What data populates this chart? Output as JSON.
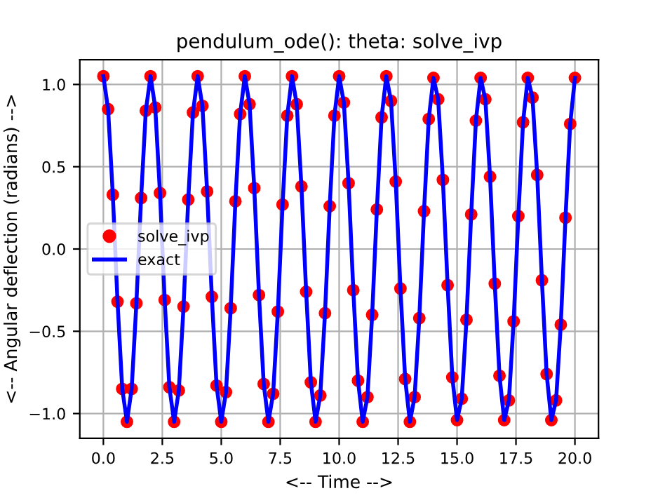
{
  "chart_data": {
    "type": "line",
    "title": "pendulum_ode(): theta: solve_ivp",
    "xlabel": "<-- Time -->",
    "ylabel": "<-- Angular deflection (radians) -->",
    "x": [
      0.0,
      0.2,
      0.4,
      0.6,
      0.8,
      1.0,
      1.2,
      1.4,
      1.6,
      1.8,
      2.0,
      2.2,
      2.4,
      2.6,
      2.8,
      3.0,
      3.2,
      3.4,
      3.6,
      3.8,
      4.0,
      4.2,
      4.4,
      4.6,
      4.8,
      5.0,
      5.2,
      5.4,
      5.6,
      5.8,
      6.0,
      6.2,
      6.4,
      6.6,
      6.8,
      7.0,
      7.2,
      7.4,
      7.6,
      7.8,
      8.0,
      8.2,
      8.4,
      8.6,
      8.8,
      9.0,
      9.2,
      9.4,
      9.6,
      9.8,
      10.0,
      10.2,
      10.4,
      10.6,
      10.8,
      11.0,
      11.2,
      11.4,
      11.6,
      11.8,
      12.0,
      12.2,
      12.4,
      12.6,
      12.8,
      13.0,
      13.2,
      13.4,
      13.6,
      13.8,
      14.0,
      14.2,
      14.4,
      14.6,
      14.8,
      15.0,
      15.2,
      15.4,
      15.6,
      15.8,
      16.0,
      16.2,
      16.4,
      16.6,
      16.8,
      17.0,
      17.2,
      17.4,
      17.6,
      17.8,
      18.0,
      18.2,
      18.4,
      18.6,
      18.8,
      19.0,
      19.2,
      19.4,
      19.6,
      19.8,
      20.0
    ],
    "series": [
      {
        "name": "solve_ivp",
        "type": "scatter",
        "color": "#ff0000",
        "marker": "circle",
        "values": [
          1.05,
          0.85,
          0.33,
          -0.32,
          -0.85,
          -1.05,
          -0.85,
          -0.33,
          0.31,
          0.84,
          1.05,
          0.86,
          0.34,
          -0.31,
          -0.84,
          -1.05,
          -0.86,
          -0.35,
          0.3,
          0.83,
          1.05,
          0.87,
          0.35,
          -0.29,
          -0.83,
          -1.05,
          -0.87,
          -0.36,
          0.29,
          0.82,
          1.05,
          0.88,
          0.37,
          -0.28,
          -0.82,
          -1.05,
          -0.88,
          -0.38,
          0.27,
          0.81,
          1.05,
          0.88,
          0.38,
          -0.26,
          -0.81,
          -1.05,
          -0.89,
          -0.39,
          0.26,
          0.81,
          1.05,
          0.89,
          0.4,
          -0.25,
          -0.8,
          -1.05,
          -0.9,
          -0.4,
          0.24,
          0.8,
          1.05,
          0.9,
          0.41,
          -0.24,
          -0.79,
          -1.05,
          -0.9,
          -0.42,
          0.23,
          0.79,
          1.04,
          0.91,
          0.42,
          -0.22,
          -0.78,
          -1.04,
          -0.91,
          -0.43,
          0.21,
          0.78,
          1.04,
          0.91,
          0.44,
          -0.21,
          -0.77,
          -1.04,
          -0.92,
          -0.44,
          0.2,
          0.77,
          1.04,
          0.92,
          0.45,
          -0.19,
          -0.76,
          -1.04,
          -0.92,
          -0.46,
          0.19,
          0.76,
          1.04
        ]
      },
      {
        "name": "exact",
        "type": "line",
        "color": "#0000ff",
        "line_style": "solid",
        "values": [
          1.05,
          0.85,
          0.33,
          -0.32,
          -0.85,
          -1.05,
          -0.85,
          -0.33,
          0.31,
          0.84,
          1.05,
          0.86,
          0.34,
          -0.31,
          -0.84,
          -1.05,
          -0.86,
          -0.35,
          0.3,
          0.83,
          1.05,
          0.87,
          0.35,
          -0.29,
          -0.83,
          -1.05,
          -0.87,
          -0.36,
          0.29,
          0.82,
          1.05,
          0.88,
          0.37,
          -0.28,
          -0.82,
          -1.05,
          -0.88,
          -0.38,
          0.27,
          0.81,
          1.05,
          0.88,
          0.38,
          -0.26,
          -0.81,
          -1.05,
          -0.89,
          -0.39,
          0.26,
          0.81,
          1.05,
          0.89,
          0.4,
          -0.25,
          -0.8,
          -1.05,
          -0.9,
          -0.4,
          0.24,
          0.8,
          1.05,
          0.9,
          0.41,
          -0.24,
          -0.79,
          -1.05,
          -0.9,
          -0.42,
          0.23,
          0.79,
          1.04,
          0.91,
          0.42,
          -0.22,
          -0.78,
          -1.04,
          -0.91,
          -0.43,
          0.21,
          0.78,
          1.04,
          0.91,
          0.44,
          -0.21,
          -0.77,
          -1.04,
          -0.92,
          -0.44,
          0.2,
          0.77,
          1.04,
          0.92,
          0.45,
          -0.19,
          -0.76,
          -1.04,
          -0.92,
          -0.46,
          0.19,
          0.76,
          1.04
        ]
      }
    ],
    "xlim": [
      -1.0,
      21.0
    ],
    "ylim": [
      -1.15,
      1.15
    ],
    "xticks": [
      {
        "value": 0,
        "label": "0.0"
      },
      2.5,
      {
        "value": 5,
        "label": "5.0"
      },
      7.5,
      {
        "value": 10,
        "label": "10.0"
      },
      12.5,
      {
        "value": 15,
        "label": "15.0"
      },
      17.5,
      {
        "value": 20,
        "label": "20.0"
      }
    ],
    "yticks": [
      {
        "value": -1,
        "label": "−1.0"
      },
      {
        "value": -0.5,
        "label": "−0.5"
      },
      {
        "value": 0,
        "label": "0.0"
      },
      0.5,
      {
        "value": 1,
        "label": "1.0"
      }
    ],
    "grid": true,
    "legend": "left"
  }
}
